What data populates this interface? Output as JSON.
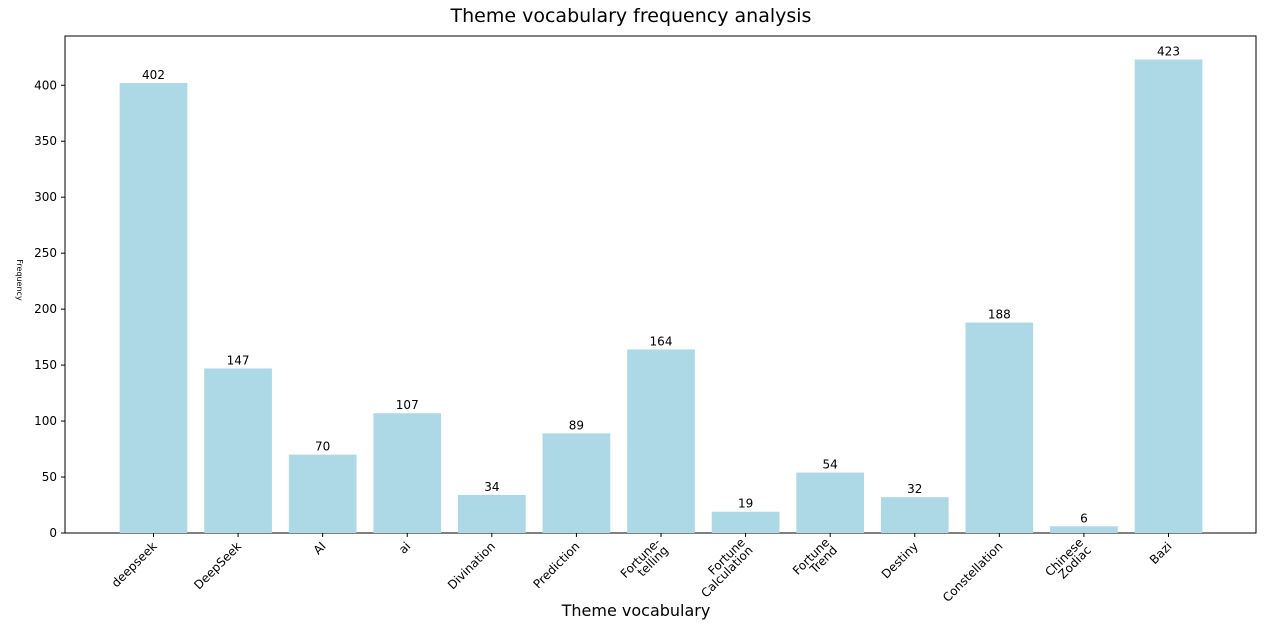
{
  "chart_data": {
    "type": "bar",
    "title": "Theme vocabulary frequency analysis",
    "xlabel": "Theme vocabulary",
    "ylabel": "Frequency",
    "categories": [
      "deepseek",
      "DeepSeek",
      "AI",
      "ai",
      "Divination",
      "Prediction",
      "Fortune-\ntelling",
      "Fortune\nCalculation",
      "Fortune\nTrend",
      "Destiny",
      "Constellation",
      "Chinese\nZodiac",
      "Bazi"
    ],
    "values": [
      402,
      147,
      70,
      107,
      34,
      89,
      164,
      19,
      54,
      32,
      188,
      6,
      423
    ],
    "ylim": [
      0,
      444
    ],
    "yticks": [
      0,
      50,
      100,
      150,
      200,
      250,
      300,
      350,
      400
    ],
    "bar_color": "#add8e6",
    "grid": false,
    "legend": "none"
  }
}
